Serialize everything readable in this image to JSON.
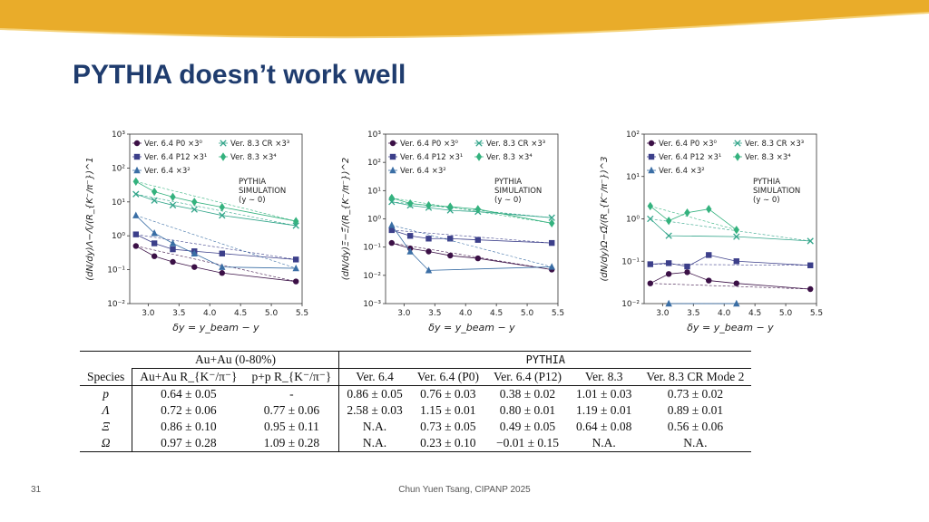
{
  "slide": {
    "title": "PYTHIA doesn’t work well",
    "page_number": "31",
    "footer": "Chun Yuen Tsang, CIPANP 2025",
    "colors": {
      "banner_yellow": "#e9ac2a",
      "title_blue": "#1f3c6e"
    }
  },
  "chart_data": [
    {
      "type": "scatter",
      "panel": "Lambda",
      "ylabel": "(dN/dy)Λ−Λ̄/(R_{K⁻/π⁻})^1",
      "xlabel": "δy = y_beam − y",
      "yscale": "log",
      "ylim": [
        0.01,
        1000
      ],
      "xlim": [
        2.7,
        5.5
      ],
      "xticks": [
        "3.0",
        "3.5",
        "4.0",
        "4.5",
        "5.0",
        "5.5"
      ],
      "yticks": [
        "10⁻²",
        "10⁻¹",
        "10⁰",
        "10¹",
        "10²",
        "10³"
      ],
      "legend": [
        "Ver. 6.4 P0 ×3⁰",
        "Ver. 8.3 CR ×3³",
        "Ver. 6.4 P12 ×3¹",
        "Ver. 8.3 ×3⁴",
        "Ver. 6.4 ×3²"
      ],
      "annotation": [
        "PYTHIA",
        "SIMULATION",
        "(y ∼ 0)"
      ],
      "series": [
        {
          "name": "Ver. 6.4 P0 ×3⁰",
          "x": [
            2.8,
            3.1,
            3.4,
            3.75,
            4.2,
            5.4
          ],
          "y": [
            0.5,
            0.25,
            0.17,
            0.12,
            0.08,
            0.045
          ]
        },
        {
          "name": "Ver. 6.4 P12 ×3¹",
          "x": [
            2.8,
            3.1,
            3.4,
            3.75,
            4.2,
            5.4
          ],
          "y": [
            1.1,
            0.6,
            0.4,
            0.35,
            0.3,
            0.2
          ]
        },
        {
          "name": "Ver. 6.4 ×3²",
          "x": [
            2.8,
            3.1,
            3.4,
            3.75,
            4.2,
            5.4
          ],
          "y": [
            4,
            1.2,
            0.6,
            0.3,
            0.12,
            0.11
          ]
        },
        {
          "name": "Ver. 8.3 CR ×3³",
          "x": [
            2.8,
            3.1,
            3.4,
            3.75,
            4.2,
            5.4
          ],
          "y": [
            17,
            11,
            8,
            6,
            4,
            2
          ]
        },
        {
          "name": "Ver. 8.3 ×3⁴",
          "x": [
            2.8,
            3.1,
            3.4,
            3.75,
            4.2,
            5.4
          ],
          "y": [
            40,
            20,
            14,
            10,
            7,
            2.7
          ]
        }
      ]
    },
    {
      "type": "scatter",
      "panel": "Xi",
      "ylabel": "(dN/dy)Ξ−Ξ̄/(R_{K⁻/π⁻})^2",
      "xlabel": "δy = y_beam − y",
      "yscale": "log",
      "ylim": [
        0.001,
        1000
      ],
      "xlim": [
        2.7,
        5.5
      ],
      "xticks": [
        "3.0",
        "3.5",
        "4.0",
        "4.5",
        "5.0",
        "5.5"
      ],
      "yticks": [
        "10⁻³",
        "10⁻²",
        "10⁻¹",
        "10⁰",
        "10¹",
        "10²",
        "10³"
      ],
      "legend": [
        "Ver. 6.4 P0 ×3⁰",
        "Ver. 8.3 CR ×3³",
        "Ver. 6.4 P12 ×3¹",
        "Ver. 8.3 ×3⁴",
        "Ver. 6.4 ×3²"
      ],
      "annotation": [
        "PYTHIA",
        "SIMULATION",
        "(y ∼ 0)"
      ],
      "series": [
        {
          "name": "Ver. 6.4 P0 ×3⁰",
          "x": [
            2.8,
            3.1,
            3.4,
            3.75,
            4.2,
            5.4
          ],
          "y": [
            0.14,
            0.09,
            0.07,
            0.05,
            0.04,
            0.016
          ]
        },
        {
          "name": "Ver. 6.4 P12 ×3¹",
          "x": [
            2.8,
            3.1,
            3.4,
            3.75,
            4.2,
            5.4
          ],
          "y": [
            0.4,
            0.25,
            0.2,
            0.2,
            0.18,
            0.14
          ]
        },
        {
          "name": "Ver. 6.4 ×3²",
          "x": [
            2.8,
            3.1,
            3.4,
            5.4
          ],
          "y": [
            0.6,
            0.07,
            0.015,
            0.02
          ]
        },
        {
          "name": "Ver. 8.3 CR ×3³",
          "x": [
            2.8,
            3.1,
            3.4,
            3.75,
            4.2,
            5.4
          ],
          "y": [
            4,
            3,
            2.5,
            2,
            1.8,
            1.1
          ]
        },
        {
          "name": "Ver. 8.3 ×3⁴",
          "x": [
            2.8,
            3.1,
            3.4,
            3.75,
            4.2,
            5.4
          ],
          "y": [
            5.5,
            3.5,
            3,
            2.7,
            2.2,
            0.7
          ]
        }
      ]
    },
    {
      "type": "scatter",
      "panel": "Omega",
      "ylabel": "(dN/dy)Ω−Ω̄/(R_{K⁻/π⁻})^3",
      "xlabel": "δy = y_beam − y",
      "yscale": "log",
      "ylim": [
        0.01,
        100
      ],
      "xlim": [
        2.7,
        5.5
      ],
      "xticks": [
        "3.0",
        "3.5",
        "4.0",
        "4.5",
        "5.0",
        "5.5"
      ],
      "yticks": [
        "10⁻²",
        "10⁻¹",
        "10⁰",
        "10¹",
        "10²"
      ],
      "legend": [
        "Ver. 6.4 P0 ×3⁰",
        "Ver. 8.3 CR ×3³",
        "Ver. 6.4 P12 ×3¹",
        "Ver. 8.3 ×3⁴",
        "Ver. 6.4 ×3²"
      ],
      "annotation": [
        "PYTHIA",
        "SIMULATION",
        "(y ∼ 0)"
      ],
      "series": [
        {
          "name": "Ver. 6.4 P0 ×3⁰",
          "x": [
            2.8,
            3.1,
            3.4,
            3.75,
            4.2,
            5.4
          ],
          "y": [
            0.03,
            0.05,
            0.055,
            0.035,
            0.03,
            0.022
          ]
        },
        {
          "name": "Ver. 6.4 P12 ×3¹",
          "x": [
            2.8,
            3.1,
            3.4,
            3.75,
            4.2,
            5.4
          ],
          "y": [
            0.085,
            0.09,
            0.075,
            0.14,
            0.1,
            0.08
          ]
        },
        {
          "name": "Ver. 6.4 ×3²",
          "x": [
            3.1,
            4.2
          ],
          "y": [
            0.01,
            0.01
          ]
        },
        {
          "name": "Ver. 8.3 CR ×3³",
          "x": [
            2.8,
            3.1,
            4.2,
            5.4
          ],
          "y": [
            1.0,
            0.4,
            0.38,
            0.3
          ]
        },
        {
          "name": "Ver. 8.3 ×3⁴",
          "x": [
            2.8,
            3.1,
            3.4,
            3.75,
            4.2
          ],
          "y": [
            2.0,
            0.9,
            1.4,
            1.7,
            0.55
          ]
        }
      ]
    }
  ],
  "table": {
    "group_auau": "Au+Au (0-80%)",
    "group_pythia": "PYTHIA",
    "headers": [
      "Species",
      "Au+Au R_{K⁻/π⁻}",
      "p+p R_{K⁻/π⁻}",
      "Ver. 6.4",
      "Ver. 6.4 (P0)",
      "Ver. 6.4 (P12)",
      "Ver. 8.3",
      "Ver. 8.3 CR Mode 2"
    ],
    "rows": [
      [
        "p",
        "0.64 ± 0.05",
        "-",
        "0.86 ± 0.05",
        "0.76 ± 0.03",
        "0.38 ± 0.02",
        "1.01 ± 0.03",
        "0.73 ± 0.02"
      ],
      [
        "Λ",
        "0.72 ± 0.06",
        "0.77 ± 0.06",
        "2.58 ± 0.03",
        "1.15 ± 0.01",
        "0.80 ± 0.01",
        "1.19 ± 0.01",
        "0.89 ± 0.01"
      ],
      [
        "Ξ",
        "0.86 ± 0.10",
        "0.95 ± 0.11",
        "N.A.",
        "0.73 ± 0.05",
        "0.49 ± 0.05",
        "0.64 ± 0.08",
        "0.56 ± 0.06"
      ],
      [
        "Ω",
        "0.97 ± 0.28",
        "1.09 ± 0.28",
        "N.A.",
        "0.23 ± 0.10",
        "−0.01 ± 0.15",
        "N.A.",
        "N.A."
      ]
    ]
  }
}
